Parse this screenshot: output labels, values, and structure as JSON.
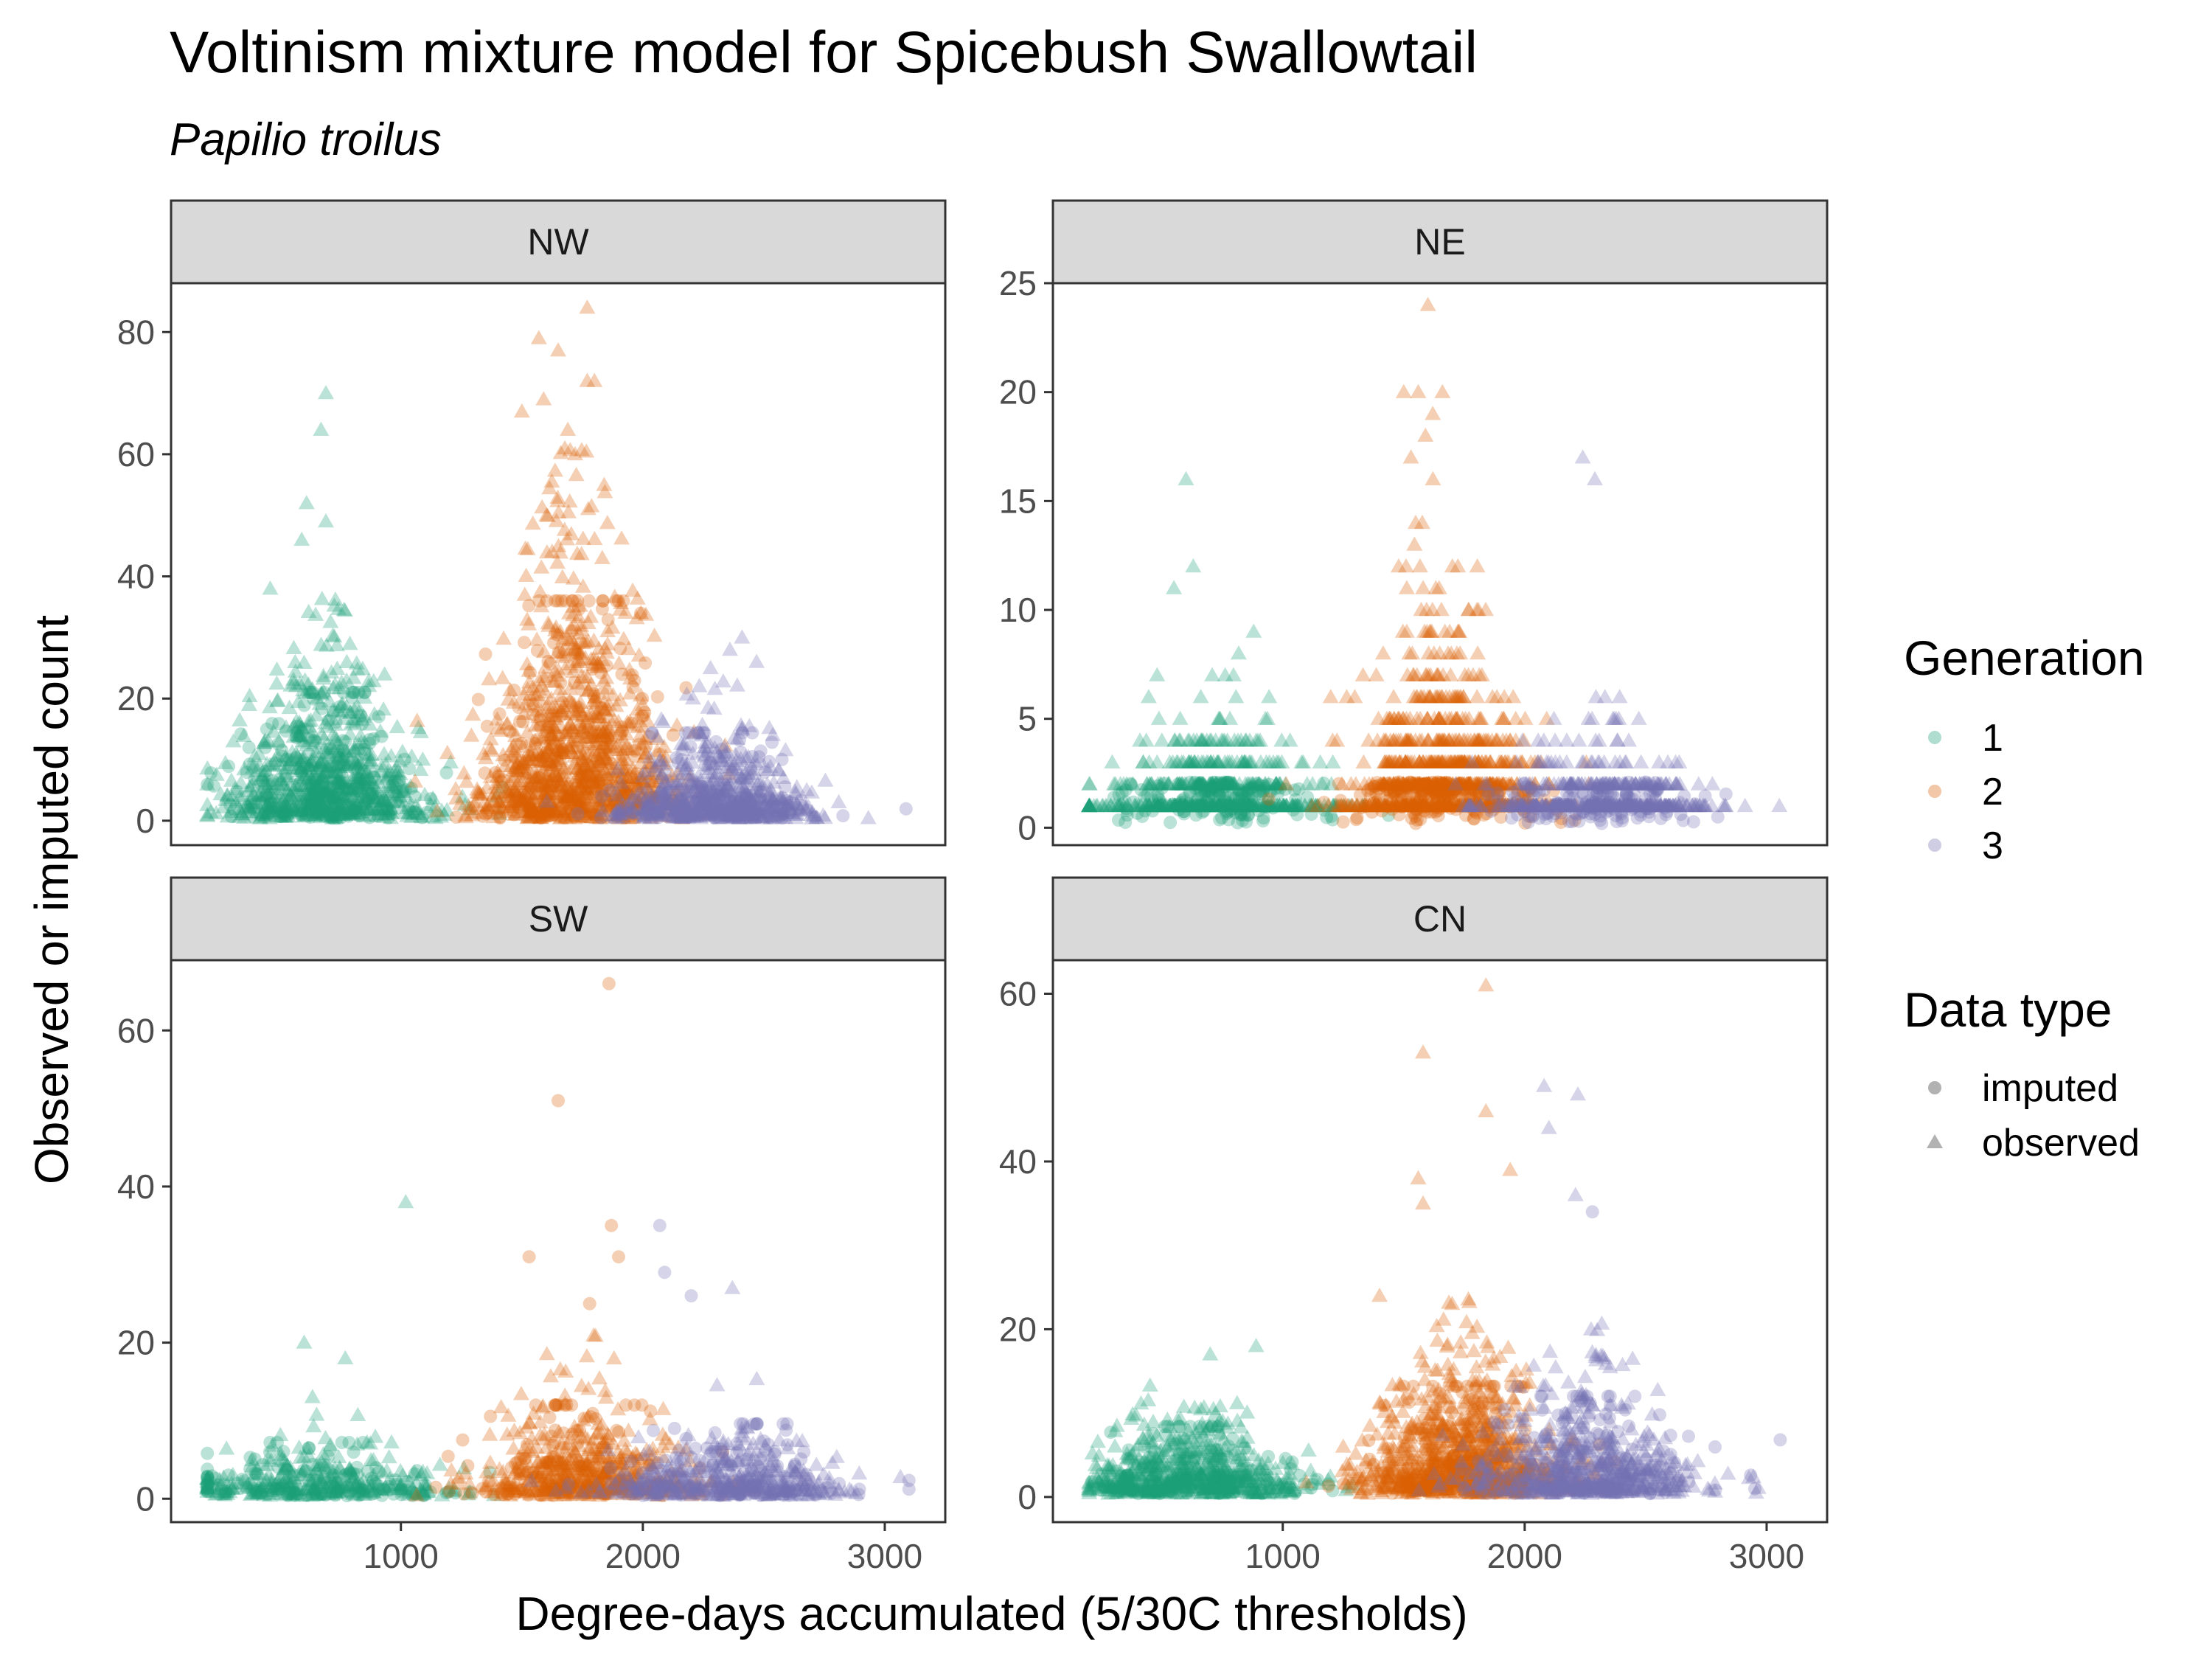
{
  "chart_data": {
    "type": "scatter",
    "title": "Voltinism mixture model for Spicebush Swallowtail",
    "subtitle": "Papilio troilus",
    "xlabel": "Degree-days accumulated (5/30C thresholds)",
    "ylabel": "Observed or imputed count",
    "xlim": [
      50,
      3250
    ],
    "x_ticks": [
      1000,
      2000,
      3000
    ],
    "grid": false,
    "facet_layout": "2x2",
    "shared_x": true,
    "colors": {
      "1": "#1b9e77",
      "2": "#d95f02",
      "3": "#7570b3"
    },
    "panels": [
      {
        "id": "NW",
        "label": "NW",
        "ylim": [
          -4,
          88
        ],
        "y_ticks": [
          0,
          20,
          40,
          60,
          80
        ],
        "integer_counts": false,
        "components": [
          {
            "generation": "1",
            "center": 680,
            "spread": 210,
            "count_scale": 9,
            "max_count": 35,
            "n_observed": 700,
            "n_imputed": 220
          },
          {
            "generation": "2",
            "center": 1720,
            "spread": 200,
            "count_scale": 15,
            "max_count": 60,
            "n_observed": 900,
            "n_imputed": 280
          },
          {
            "generation": "3",
            "center": 2300,
            "spread": 200,
            "count_scale": 5,
            "max_count": 24,
            "n_observed": 550,
            "n_imputed": 180
          }
        ],
        "highlights": [
          {
            "x": 690,
            "y": 70,
            "generation": "1",
            "data_type": "observed"
          },
          {
            "x": 670,
            "y": 64,
            "generation": "1",
            "data_type": "observed"
          },
          {
            "x": 610,
            "y": 52,
            "generation": "1",
            "data_type": "observed"
          },
          {
            "x": 690,
            "y": 49,
            "generation": "1",
            "data_type": "observed"
          },
          {
            "x": 590,
            "y": 46,
            "generation": "1",
            "data_type": "observed"
          },
          {
            "x": 460,
            "y": 38,
            "generation": "1",
            "data_type": "observed"
          },
          {
            "x": 1770,
            "y": 84,
            "generation": "2",
            "data_type": "observed"
          },
          {
            "x": 1570,
            "y": 79,
            "generation": "2",
            "data_type": "observed"
          },
          {
            "x": 1650,
            "y": 77,
            "generation": "2",
            "data_type": "observed"
          },
          {
            "x": 1770,
            "y": 72,
            "generation": "2",
            "data_type": "observed"
          },
          {
            "x": 1800,
            "y": 72,
            "generation": "2",
            "data_type": "observed"
          },
          {
            "x": 1590,
            "y": 69,
            "generation": "2",
            "data_type": "observed"
          },
          {
            "x": 1500,
            "y": 67,
            "generation": "2",
            "data_type": "observed"
          },
          {
            "x": 1690,
            "y": 64,
            "generation": "2",
            "data_type": "observed"
          },
          {
            "x": 1720,
            "y": 60,
            "generation": "2",
            "data_type": "observed"
          },
          {
            "x": 2410,
            "y": 30,
            "generation": "3",
            "data_type": "observed"
          },
          {
            "x": 2360,
            "y": 28,
            "generation": "3",
            "data_type": "observed"
          },
          {
            "x": 2470,
            "y": 26,
            "generation": "3",
            "data_type": "observed"
          },
          {
            "x": 2280,
            "y": 25,
            "generation": "3",
            "data_type": "observed"
          }
        ]
      },
      {
        "id": "NE",
        "label": "NE",
        "ylim": [
          -0.8,
          25
        ],
        "y_ticks": [
          0,
          5,
          10,
          15,
          20,
          25
        ],
        "integer_counts": true,
        "components": [
          {
            "generation": "1",
            "center": 720,
            "spread": 230,
            "count_scale": 1.6,
            "max_count": 8,
            "n_observed": 500,
            "n_imputed": 180
          },
          {
            "generation": "2",
            "center": 1650,
            "spread": 190,
            "count_scale": 3.2,
            "max_count": 14,
            "n_observed": 800,
            "n_imputed": 260
          },
          {
            "generation": "3",
            "center": 2300,
            "spread": 210,
            "count_scale": 1.2,
            "max_count": 9,
            "n_observed": 450,
            "n_imputed": 160
          }
        ],
        "highlights": [
          {
            "x": 1600,
            "y": 24,
            "generation": "2",
            "data_type": "observed"
          },
          {
            "x": 1500,
            "y": 20,
            "generation": "2",
            "data_type": "observed"
          },
          {
            "x": 1560,
            "y": 20,
            "generation": "2",
            "data_type": "observed"
          },
          {
            "x": 1660,
            "y": 20,
            "generation": "2",
            "data_type": "observed"
          },
          {
            "x": 1620,
            "y": 19,
            "generation": "2",
            "data_type": "observed"
          },
          {
            "x": 1590,
            "y": 18,
            "generation": "2",
            "data_type": "observed"
          },
          {
            "x": 1530,
            "y": 17,
            "generation": "2",
            "data_type": "observed"
          },
          {
            "x": 2240,
            "y": 17,
            "generation": "3",
            "data_type": "observed"
          },
          {
            "x": 2290,
            "y": 16,
            "generation": "3",
            "data_type": "observed"
          },
          {
            "x": 600,
            "y": 16,
            "generation": "1",
            "data_type": "observed"
          },
          {
            "x": 630,
            "y": 12,
            "generation": "1",
            "data_type": "observed"
          },
          {
            "x": 550,
            "y": 11,
            "generation": "1",
            "data_type": "observed"
          },
          {
            "x": 880,
            "y": 9,
            "generation": "1",
            "data_type": "observed"
          }
        ]
      },
      {
        "id": "SW",
        "label": "SW",
        "ylim": [
          -3,
          69
        ],
        "y_ticks": [
          0,
          20,
          40,
          60
        ],
        "integer_counts": false,
        "components": [
          {
            "generation": "1",
            "center": 650,
            "spread": 260,
            "count_scale": 2.4,
            "max_count": 12,
            "n_observed": 260,
            "n_imputed": 160
          },
          {
            "generation": "2",
            "center": 1750,
            "spread": 230,
            "count_scale": 4.5,
            "max_count": 20,
            "n_observed": 380,
            "n_imputed": 200
          },
          {
            "generation": "3",
            "center": 2350,
            "spread": 250,
            "count_scale": 3,
            "max_count": 16,
            "n_observed": 320,
            "n_imputed": 180
          }
        ],
        "highlights": [
          {
            "x": 1860,
            "y": 66,
            "generation": "2",
            "data_type": "imputed"
          },
          {
            "x": 1650,
            "y": 51,
            "generation": "2",
            "data_type": "imputed"
          },
          {
            "x": 1870,
            "y": 35,
            "generation": "2",
            "data_type": "imputed"
          },
          {
            "x": 1530,
            "y": 31,
            "generation": "2",
            "data_type": "imputed"
          },
          {
            "x": 1900,
            "y": 31,
            "generation": "2",
            "data_type": "imputed"
          },
          {
            "x": 1780,
            "y": 25,
            "generation": "2",
            "data_type": "imputed"
          },
          {
            "x": 2070,
            "y": 35,
            "generation": "3",
            "data_type": "imputed"
          },
          {
            "x": 2090,
            "y": 29,
            "generation": "3",
            "data_type": "imputed"
          },
          {
            "x": 2370,
            "y": 27,
            "generation": "3",
            "data_type": "observed"
          },
          {
            "x": 2200,
            "y": 26,
            "generation": "3",
            "data_type": "imputed"
          },
          {
            "x": 1020,
            "y": 38,
            "generation": "1",
            "data_type": "observed"
          },
          {
            "x": 600,
            "y": 20,
            "generation": "1",
            "data_type": "observed"
          },
          {
            "x": 770,
            "y": 18,
            "generation": "1",
            "data_type": "observed"
          }
        ]
      },
      {
        "id": "CN",
        "label": "CN",
        "ylim": [
          -3,
          64
        ],
        "y_ticks": [
          0,
          20,
          40,
          60
        ],
        "integer_counts": false,
        "components": [
          {
            "generation": "1",
            "center": 620,
            "spread": 220,
            "count_scale": 3,
            "max_count": 14,
            "n_observed": 520,
            "n_imputed": 200
          },
          {
            "generation": "2",
            "center": 1750,
            "spread": 200,
            "count_scale": 6,
            "max_count": 22,
            "n_observed": 700,
            "n_imputed": 260
          },
          {
            "generation": "3",
            "center": 2250,
            "spread": 230,
            "count_scale": 4.5,
            "max_count": 20,
            "n_observed": 500,
            "n_imputed": 200
          }
        ],
        "highlights": [
          {
            "x": 1840,
            "y": 61,
            "generation": "2",
            "data_type": "observed"
          },
          {
            "x": 1580,
            "y": 53,
            "generation": "2",
            "data_type": "observed"
          },
          {
            "x": 1840,
            "y": 46,
            "generation": "2",
            "data_type": "observed"
          },
          {
            "x": 1560,
            "y": 38,
            "generation": "2",
            "data_type": "observed"
          },
          {
            "x": 1940,
            "y": 39,
            "generation": "2",
            "data_type": "observed"
          },
          {
            "x": 1580,
            "y": 35,
            "generation": "2",
            "data_type": "observed"
          },
          {
            "x": 2080,
            "y": 49,
            "generation": "3",
            "data_type": "observed"
          },
          {
            "x": 2220,
            "y": 48,
            "generation": "3",
            "data_type": "observed"
          },
          {
            "x": 2100,
            "y": 44,
            "generation": "3",
            "data_type": "observed"
          },
          {
            "x": 2210,
            "y": 36,
            "generation": "3",
            "data_type": "observed"
          },
          {
            "x": 2280,
            "y": 34,
            "generation": "3",
            "data_type": "imputed"
          },
          {
            "x": 1400,
            "y": 24,
            "generation": "2",
            "data_type": "observed"
          },
          {
            "x": 890,
            "y": 18,
            "generation": "1",
            "data_type": "observed"
          },
          {
            "x": 700,
            "y": 17,
            "generation": "1",
            "data_type": "observed"
          }
        ]
      }
    ],
    "legend": {
      "placement": "right",
      "generation_title": "Generation",
      "generation_items": [
        "1",
        "2",
        "3"
      ],
      "data_type_title": "Data type",
      "data_type_items": [
        "imputed",
        "observed"
      ]
    }
  }
}
